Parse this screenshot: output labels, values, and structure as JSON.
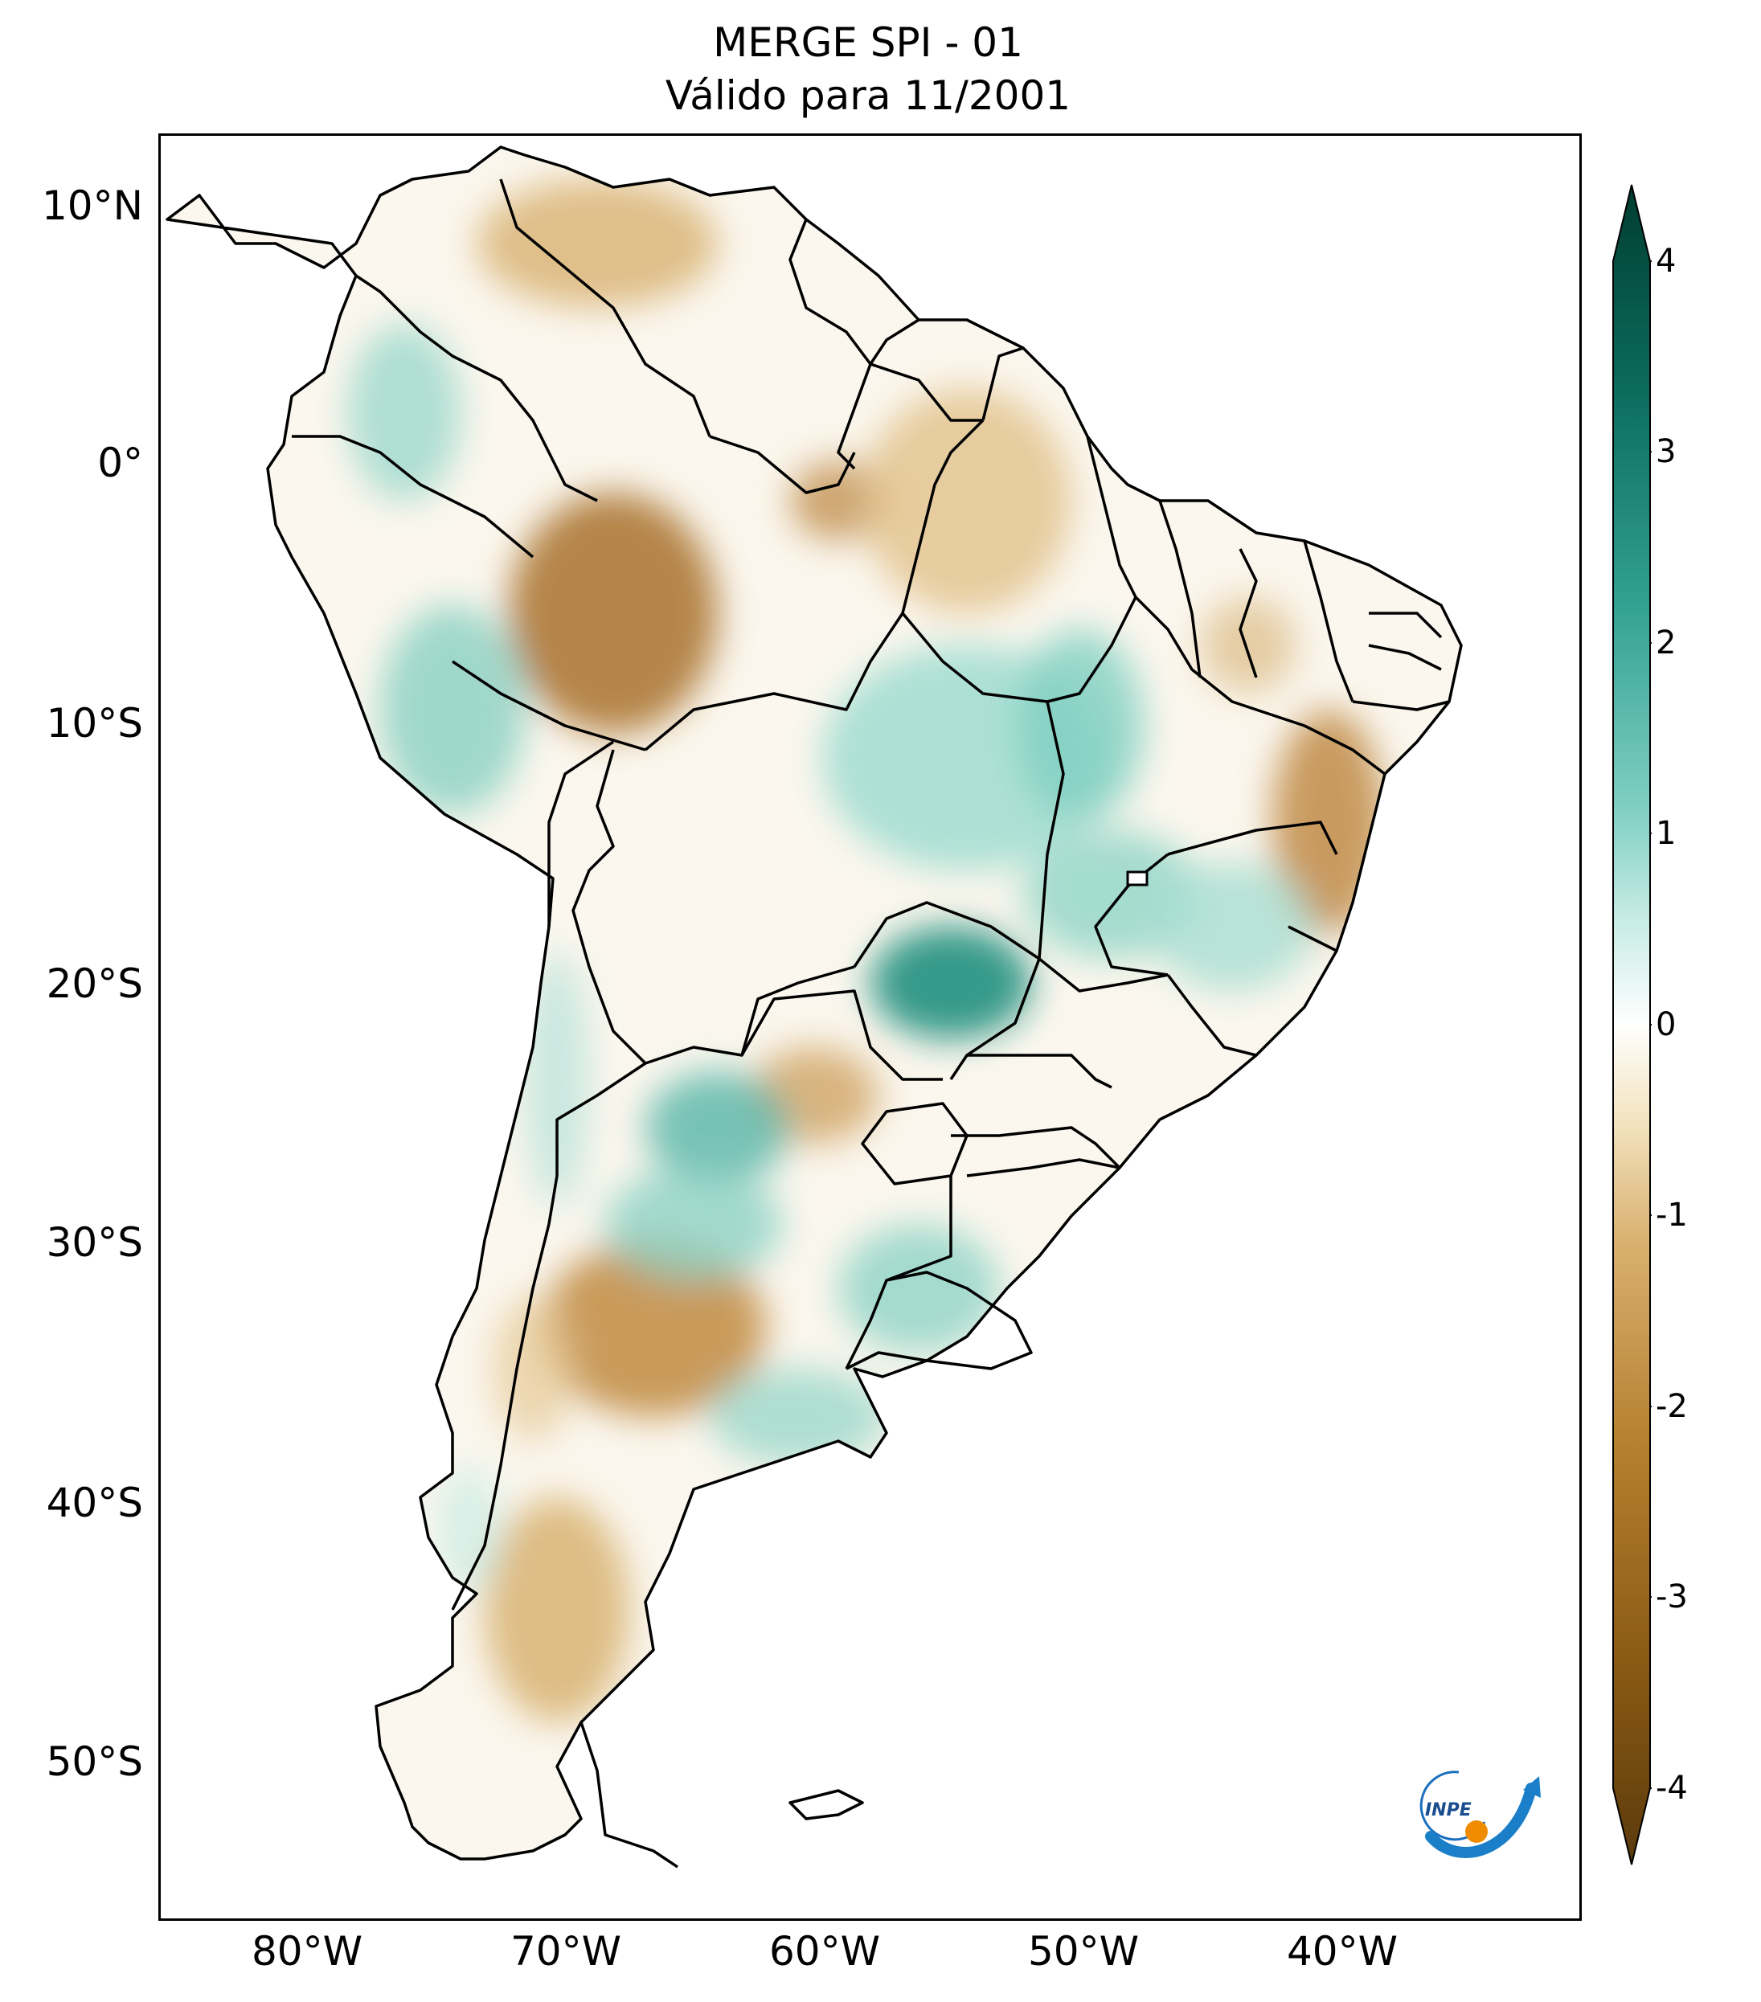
{
  "title": {
    "line1": "MERGE   SPI - 01",
    "line2": "Válido para 11/2001"
  },
  "axes": {
    "lat_ticks": [
      "10°N",
      "0°",
      "10°S",
      "20°S",
      "30°S",
      "40°S",
      "50°S"
    ],
    "lon_ticks": [
      "80°W",
      "70°W",
      "60°W",
      "50°W",
      "40°W"
    ]
  },
  "colorbar": {
    "ticks": [
      "4",
      "3",
      "2",
      "1",
      "0",
      "-1",
      "-2",
      "-3",
      "-4"
    ],
    "min": -4,
    "max": 4,
    "colors": [
      "#5b3a0c",
      "#8a5a14",
      "#b5802f",
      "#d9b06f",
      "#f2e2bd",
      "#ffffff",
      "#c9ece6",
      "#7fcfc2",
      "#33a191",
      "#0b6b5c",
      "#003d30"
    ]
  },
  "logo": {
    "text": "INPE"
  }
}
